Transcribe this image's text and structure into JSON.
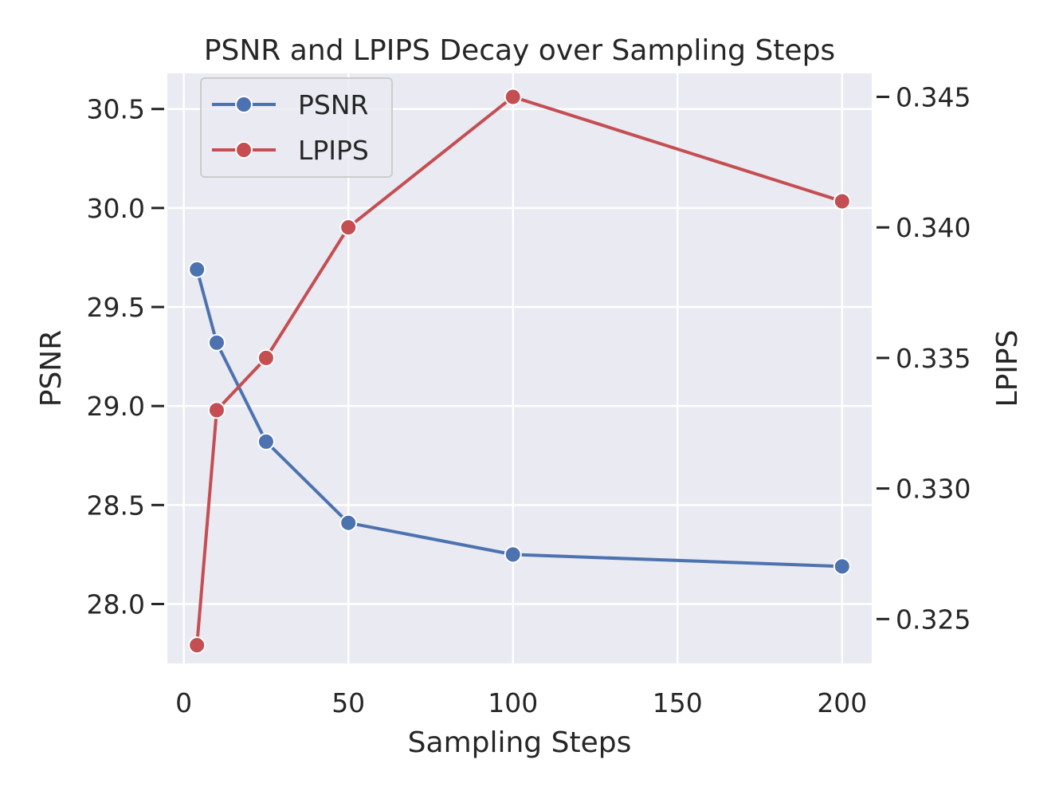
{
  "chart_data": {
    "type": "line",
    "title": "PSNR and LPIPS Decay over Sampling Steps",
    "xlabel": "Sampling Steps",
    "ylabel_left": "PSNR",
    "ylabel_right": "LPIPS",
    "x": [
      4,
      10,
      25,
      50,
      100,
      200
    ],
    "xlim": [
      -5,
      209
    ],
    "xticks": [
      0,
      50,
      100,
      150,
      200
    ],
    "xtick_labels": [
      "0",
      "50",
      "100",
      "150",
      "200"
    ],
    "ylim_left": [
      27.7,
      30.68
    ],
    "yticks_left": [
      28.0,
      28.5,
      29.0,
      29.5,
      30.0,
      30.5
    ],
    "ytick_labels_left": [
      "28.0",
      "28.5",
      "29.0",
      "29.5",
      "30.0",
      "30.5"
    ],
    "ylim_right": [
      0.3233,
      0.3459
    ],
    "yticks_right": [
      0.325,
      0.33,
      0.335,
      0.34,
      0.345
    ],
    "ytick_labels_right": [
      "0.325",
      "0.330",
      "0.335",
      "0.340",
      "0.345"
    ],
    "grid": true,
    "legend_position": "upper-left",
    "series": [
      {
        "name": "PSNR",
        "axis": "left",
        "color": "#4c72b0",
        "values": [
          29.69,
          29.32,
          28.82,
          28.41,
          28.25,
          28.19
        ]
      },
      {
        "name": "LPIPS",
        "axis": "right",
        "color": "#c44e52",
        "values": [
          0.324,
          0.333,
          0.335,
          0.34,
          0.345,
          0.341
        ]
      }
    ],
    "background_color": "#eaeaf2",
    "grid_color": "#ffffff"
  }
}
